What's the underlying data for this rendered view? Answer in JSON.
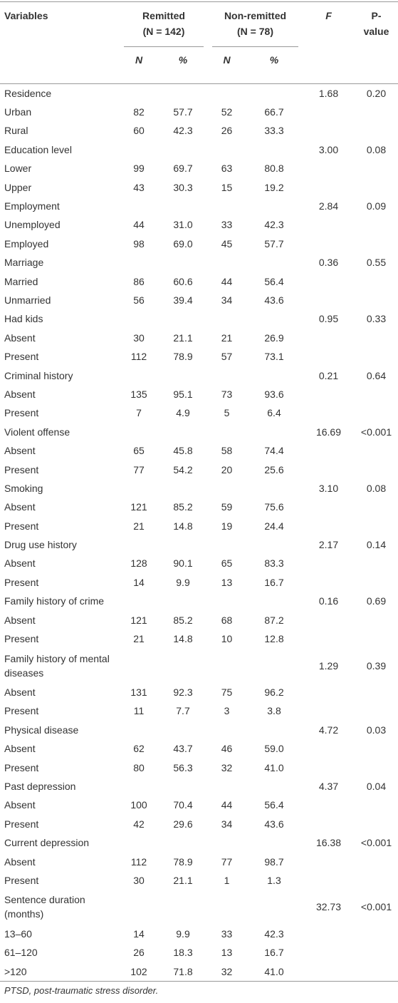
{
  "table": {
    "header": {
      "variables": "Variables",
      "groups": [
        {
          "name": "Remitted",
          "n": "(N = 142)"
        },
        {
          "name": "Non-remitted",
          "n": "(N = 78)"
        }
      ],
      "f": "F",
      "p": "P-value",
      "sub": [
        "N",
        "%",
        "N",
        "%"
      ]
    },
    "rows": [
      {
        "label": "Residence",
        "f": "1.68",
        "p": "0.20"
      },
      {
        "label": "Urban",
        "values": [
          "82",
          "57.7",
          "52",
          "66.7"
        ]
      },
      {
        "label": "Rural",
        "values": [
          "60",
          "42.3",
          "26",
          "33.3"
        ]
      },
      {
        "label": "Education level",
        "f": "3.00",
        "p": "0.08"
      },
      {
        "label": "Lower",
        "values": [
          "99",
          "69.7",
          "63",
          "80.8"
        ]
      },
      {
        "label": "Upper",
        "values": [
          "43",
          "30.3",
          "15",
          "19.2"
        ]
      },
      {
        "label": "Employment",
        "f": "2.84",
        "p": "0.09"
      },
      {
        "label": "Unemployed",
        "values": [
          "44",
          "31.0",
          "33",
          "42.3"
        ]
      },
      {
        "label": "Employed",
        "values": [
          "98",
          "69.0",
          "45",
          "57.7"
        ]
      },
      {
        "label": "Marriage",
        "f": "0.36",
        "p": "0.55"
      },
      {
        "label": "Married",
        "values": [
          "86",
          "60.6",
          "44",
          "56.4"
        ]
      },
      {
        "label": "Unmarried",
        "values": [
          "56",
          "39.4",
          "34",
          "43.6"
        ]
      },
      {
        "label": "Had kids",
        "f": "0.95",
        "p": "0.33"
      },
      {
        "label": "Absent",
        "values": [
          "30",
          "21.1",
          "21",
          "26.9"
        ]
      },
      {
        "label": "Present",
        "values": [
          "112",
          "78.9",
          "57",
          "73.1"
        ]
      },
      {
        "label": "Criminal history",
        "f": "0.21",
        "p": "0.64"
      },
      {
        "label": "Absent",
        "values": [
          "135",
          "95.1",
          "73",
          "93.6"
        ]
      },
      {
        "label": "Present",
        "values": [
          "7",
          "4.9",
          "5",
          "6.4"
        ]
      },
      {
        "label": "Violent offense",
        "f": "16.69",
        "p": "<0.001"
      },
      {
        "label": "Absent",
        "values": [
          "65",
          "45.8",
          "58",
          "74.4"
        ]
      },
      {
        "label": "Present",
        "values": [
          "77",
          "54.2",
          "20",
          "25.6"
        ]
      },
      {
        "label": "Smoking",
        "f": "3.10",
        "p": "0.08"
      },
      {
        "label": "Absent",
        "values": [
          "121",
          "85.2",
          "59",
          "75.6"
        ]
      },
      {
        "label": "Present",
        "values": [
          "21",
          "14.8",
          "19",
          "24.4"
        ]
      },
      {
        "label": "Drug use history",
        "f": "2.17",
        "p": "0.14"
      },
      {
        "label": "Absent",
        "values": [
          "128",
          "90.1",
          "65",
          "83.3"
        ]
      },
      {
        "label": "Present",
        "values": [
          "14",
          "9.9",
          "13",
          "16.7"
        ]
      },
      {
        "label": "Family history of crime",
        "f": "0.16",
        "p": "0.69"
      },
      {
        "label": "Absent",
        "values": [
          "121",
          "85.2",
          "68",
          "87.2"
        ]
      },
      {
        "label": "Present",
        "values": [
          "21",
          "14.8",
          "10",
          "12.8"
        ]
      },
      {
        "label": "Family history of mental diseases",
        "f": "1.29",
        "p": "0.39"
      },
      {
        "label": "Absent",
        "values": [
          "131",
          "92.3",
          "75",
          "96.2"
        ]
      },
      {
        "label": "Present",
        "values": [
          "11",
          "7.7",
          "3",
          "3.8"
        ]
      },
      {
        "label": "Physical disease",
        "f": "4.72",
        "p": "0.03"
      },
      {
        "label": "Absent",
        "values": [
          "62",
          "43.7",
          "46",
          "59.0"
        ]
      },
      {
        "label": "Present",
        "values": [
          "80",
          "56.3",
          "32",
          "41.0"
        ]
      },
      {
        "label": "Past depression",
        "f": "4.37",
        "p": "0.04"
      },
      {
        "label": "Absent",
        "values": [
          "100",
          "70.4",
          "44",
          "56.4"
        ]
      },
      {
        "label": "Present",
        "values": [
          "42",
          "29.6",
          "34",
          "43.6"
        ]
      },
      {
        "label": "Current depression",
        "f": "16.38",
        "p": "<0.001"
      },
      {
        "label": "Absent",
        "values": [
          "112",
          "78.9",
          "77",
          "98.7"
        ]
      },
      {
        "label": "Present",
        "values": [
          "30",
          "21.1",
          "1",
          "1.3"
        ]
      },
      {
        "label": "Sentence duration (months)",
        "f": "32.73",
        "p": "<0.001"
      },
      {
        "label": "13–60",
        "values": [
          "14",
          "9.9",
          "33",
          "42.3"
        ]
      },
      {
        "label": "61–120",
        "values": [
          "26",
          "18.3",
          "13",
          "16.7"
        ]
      },
      {
        "label": ">120",
        "values": [
          "102",
          "71.8",
          "32",
          "41.0"
        ]
      }
    ],
    "footnote": "PTSD, post-traumatic stress disorder."
  }
}
